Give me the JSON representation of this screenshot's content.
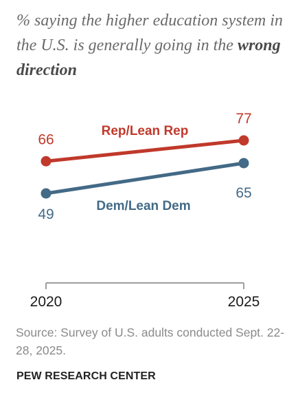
{
  "header": {
    "title_plain": "% saying the higher education system in the U.S. is generally going in the ",
    "title_emphasis": "wrong direction"
  },
  "chart_data": {
    "type": "line",
    "x": [
      "2020",
      "2025"
    ],
    "series": [
      {
        "name": "Rep/Lean Rep",
        "values": [
          66,
          77
        ],
        "color": "#c0392b"
      },
      {
        "name": "Dem/Lean Dem",
        "values": [
          49,
          65
        ],
        "color": "#436a86"
      }
    ],
    "axis_color": "#9e9e9e",
    "grid": false,
    "legend": "inline-labels"
  },
  "footer": {
    "source": "Source: Survey of U.S. adults conducted Sept. 22-28, 2025.",
    "brand": "PEW RESEARCH CENTER"
  }
}
